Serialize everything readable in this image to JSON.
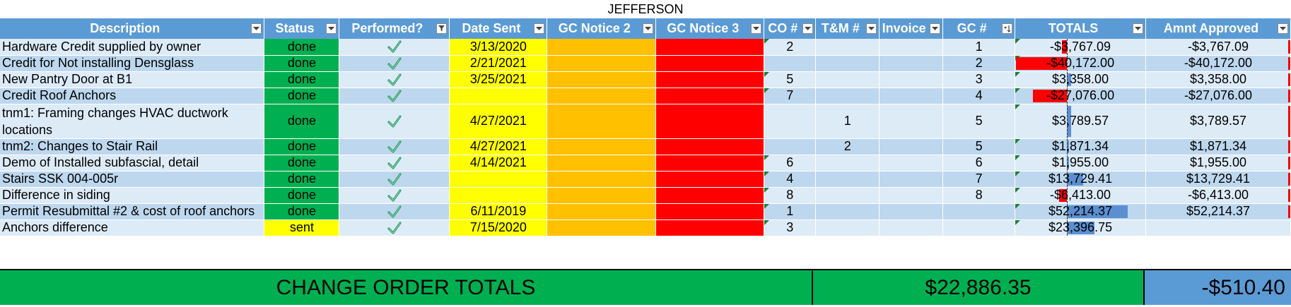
{
  "sheet_title": "JEFFERSON",
  "columns": [
    {
      "label": "Description",
      "filter": "dropdown"
    },
    {
      "label": "Status",
      "filter": "dropdown"
    },
    {
      "label": "Performed?",
      "filter": "filtered"
    },
    {
      "label": "Date Sent",
      "filter": "dropdown"
    },
    {
      "label": "GC Notice 2",
      "filter": "dropdown"
    },
    {
      "label": "GC Notice 3",
      "filter": "dropdown"
    },
    {
      "label": "CO #",
      "filter": "dropdown"
    },
    {
      "label": "T&M #",
      "filter": "dropdown"
    },
    {
      "label": "Invoice",
      "filter": "dropdown"
    },
    {
      "label": "GC #",
      "filter": "sorted"
    },
    {
      "label": "TOTALS",
      "filter": "dropdown"
    },
    {
      "label": "Amnt Approved",
      "filter": "dropdown"
    }
  ],
  "rows": [
    {
      "desc": "Hardware Credit supplied by owner",
      "status": "done",
      "performed": true,
      "date": "3/13/2020",
      "co": "2",
      "tm": "",
      "invoice": "",
      "gc": "1",
      "total": "-$3,767.09",
      "total_value": -3767.09,
      "approved": "-$3,767.09"
    },
    {
      "desc": "Credit for Not installing Densglass",
      "status": "done",
      "performed": true,
      "date": "2/21/2021",
      "co": "",
      "tm": "",
      "invoice": "",
      "gc": "2",
      "total": "-$40,172.00",
      "total_value": -40172.0,
      "approved": "-$40,172.00"
    },
    {
      "desc": "New Pantry Door at B1",
      "status": "done",
      "performed": true,
      "date": "3/25/2021",
      "co": "5",
      "tm": "",
      "invoice": "",
      "gc": "3",
      "total": "$3,358.00",
      "total_value": 3358.0,
      "approved": "$3,358.00"
    },
    {
      "desc": "Credit Roof Anchors",
      "status": "done",
      "performed": true,
      "date": "",
      "co": "7",
      "tm": "",
      "invoice": "",
      "gc": "4",
      "total": "-$27,076.00",
      "total_value": -27076.0,
      "approved": "-$27,076.00"
    },
    {
      "desc": "tnm1: Framing changes HVAC ductwork locations",
      "status": "done",
      "performed": true,
      "date": "4/27/2021",
      "co": "",
      "tm": "1",
      "invoice": "",
      "gc": "5",
      "total": "$3,789.57",
      "total_value": 3789.57,
      "approved": "$3,789.57"
    },
    {
      "desc": "tnm2: Changes to Stair Rail",
      "status": "done",
      "performed": true,
      "date": "4/27/2021",
      "co": "",
      "tm": "2",
      "invoice": "",
      "gc": "5",
      "total": "$1,871.34",
      "total_value": 1871.34,
      "approved": "$1,871.34"
    },
    {
      "desc": "Demo of Installed subfascial, detail",
      "status": "done",
      "performed": true,
      "date": "4/14/2021",
      "co": "6",
      "tm": "",
      "invoice": "",
      "gc": "6",
      "total": "$1,955.00",
      "total_value": 1955.0,
      "approved": "$1,955.00"
    },
    {
      "desc": "Stairs SSK 004-005r",
      "status": "done",
      "performed": true,
      "date": "",
      "co": "4",
      "tm": "",
      "invoice": "",
      "gc": "7",
      "total": "$13,729.41",
      "total_value": 13729.41,
      "approved": "$13,729.41"
    },
    {
      "desc": "Difference in siding",
      "status": "done",
      "performed": true,
      "date": "",
      "co": "8",
      "tm": "",
      "invoice": "",
      "gc": "8",
      "total": "-$6,413.00",
      "total_value": -6413.0,
      "approved": "-$6,413.00"
    },
    {
      "desc": "Permit Resubmittal #2 & cost of roof anchors",
      "status": "done",
      "performed": true,
      "date": "6/11/2019",
      "co": "1",
      "tm": "",
      "invoice": "",
      "gc": "",
      "total": "$52,214.37",
      "total_value": 52214.37,
      "approved": "$52,214.37"
    },
    {
      "desc": "Anchors difference",
      "status": "sent",
      "performed": true,
      "date": "7/15/2020",
      "co": "3",
      "tm": "",
      "invoice": "",
      "gc": "",
      "total": "$23,396.75",
      "total_value": 23396.75,
      "approved": ""
    }
  ],
  "summary": {
    "label": "CHANGE ORDER TOTALS",
    "total": "$22,886.35",
    "approved": "-$510.40"
  },
  "colors": {
    "header_blue": "#5b9bd5",
    "status_done": "#00b050",
    "status_sent": "#ffff00",
    "date_yellow": "#ffff00",
    "gc_notice2_orange": "#ffc000",
    "gc_notice3_red": "#ff0000",
    "row_light": "#ddebf7",
    "row_dark": "#bdd7ee",
    "bar_negative": "#ff0000",
    "bar_positive": "#5b8fd0"
  }
}
